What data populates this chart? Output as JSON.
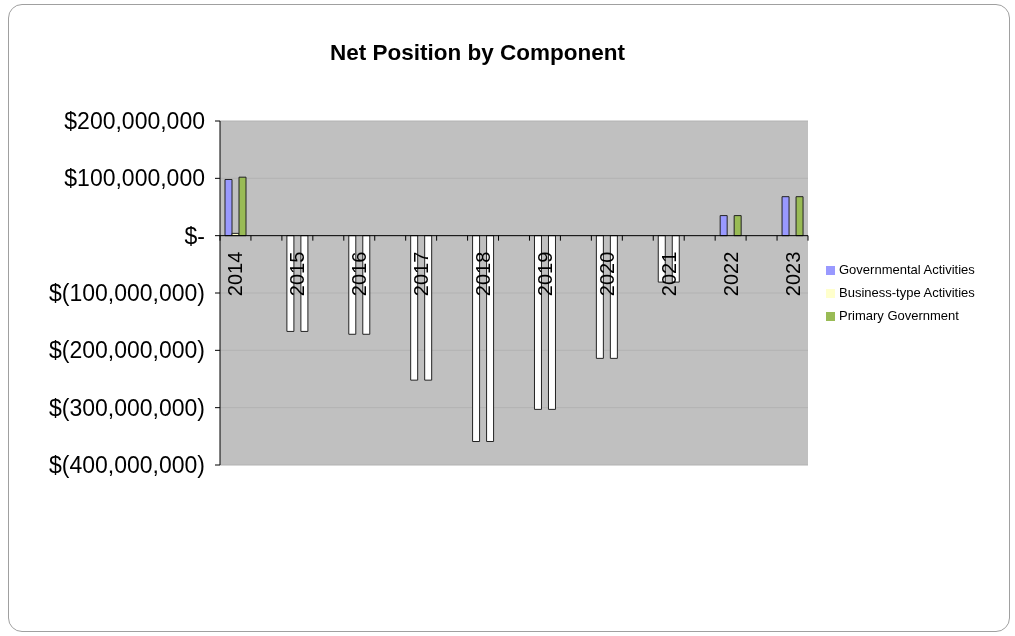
{
  "chart_data": {
    "type": "bar",
    "title": "Net Position by Component",
    "categories": [
      "2014",
      null,
      "2015",
      null,
      "2016",
      null,
      "2017",
      null,
      "2018",
      null,
      "2019",
      null,
      "2020",
      null,
      "2021",
      null,
      "2022",
      null,
      "2023"
    ],
    "series": [
      {
        "name": "Governmental Activities",
        "color": "#9999ff",
        "values": [
          98000000,
          null,
          -167000000,
          null,
          -172000000,
          null,
          -252000000,
          null,
          -359000000,
          null,
          -303000000,
          null,
          -214000000,
          null,
          -81000000,
          null,
          35000000,
          null,
          68000000
        ],
        "colors": [
          "#9999ff",
          null,
          "#ffffff",
          null,
          "#ffffff",
          null,
          "#ffffff",
          null,
          "#ffffff",
          null,
          "#ffffff",
          null,
          "#ffffff",
          null,
          "#ffffff",
          null,
          "#9999ff",
          null,
          "#9999ff"
        ]
      },
      {
        "name": "Business-type Activities",
        "color": "#ffffcc",
        "values": [
          4000000,
          null,
          0,
          null,
          0,
          null,
          0,
          null,
          0,
          null,
          0,
          null,
          0,
          null,
          0,
          null,
          0,
          null,
          0
        ]
      },
      {
        "name": "Primary Government",
        "color": "#99bb55",
        "values": [
          102000000,
          null,
          -167000000,
          null,
          -172000000,
          null,
          -252000000,
          null,
          -359000000,
          null,
          -303000000,
          null,
          -214000000,
          null,
          -81000000,
          null,
          35000000,
          null,
          68000000
        ],
        "colors": [
          "#99bb55",
          null,
          "#ffffff",
          null,
          "#ffffff",
          null,
          "#ffffff",
          null,
          "#ffffff",
          null,
          "#ffffff",
          null,
          "#ffffff",
          null,
          "#ffffff",
          null,
          "#99bb55",
          null,
          "#99bb55"
        ]
      }
    ],
    "ylim": [
      -400000000,
      200000000
    ],
    "yticks": [
      {
        "value": -400000000,
        "label": "$(400,000,000)"
      },
      {
        "value": -300000000,
        "label": "$(300,000,000)"
      },
      {
        "value": -200000000,
        "label": "$(200,000,000)"
      },
      {
        "value": -100000000,
        "label": "$(100,000,000)"
      },
      {
        "value": 0,
        "label": "$-"
      },
      {
        "value": 100000000,
        "label": "$100,000,000"
      },
      {
        "value": 200000000,
        "label": "$200,000,000"
      }
    ],
    "grid": "y",
    "legend": "right"
  }
}
